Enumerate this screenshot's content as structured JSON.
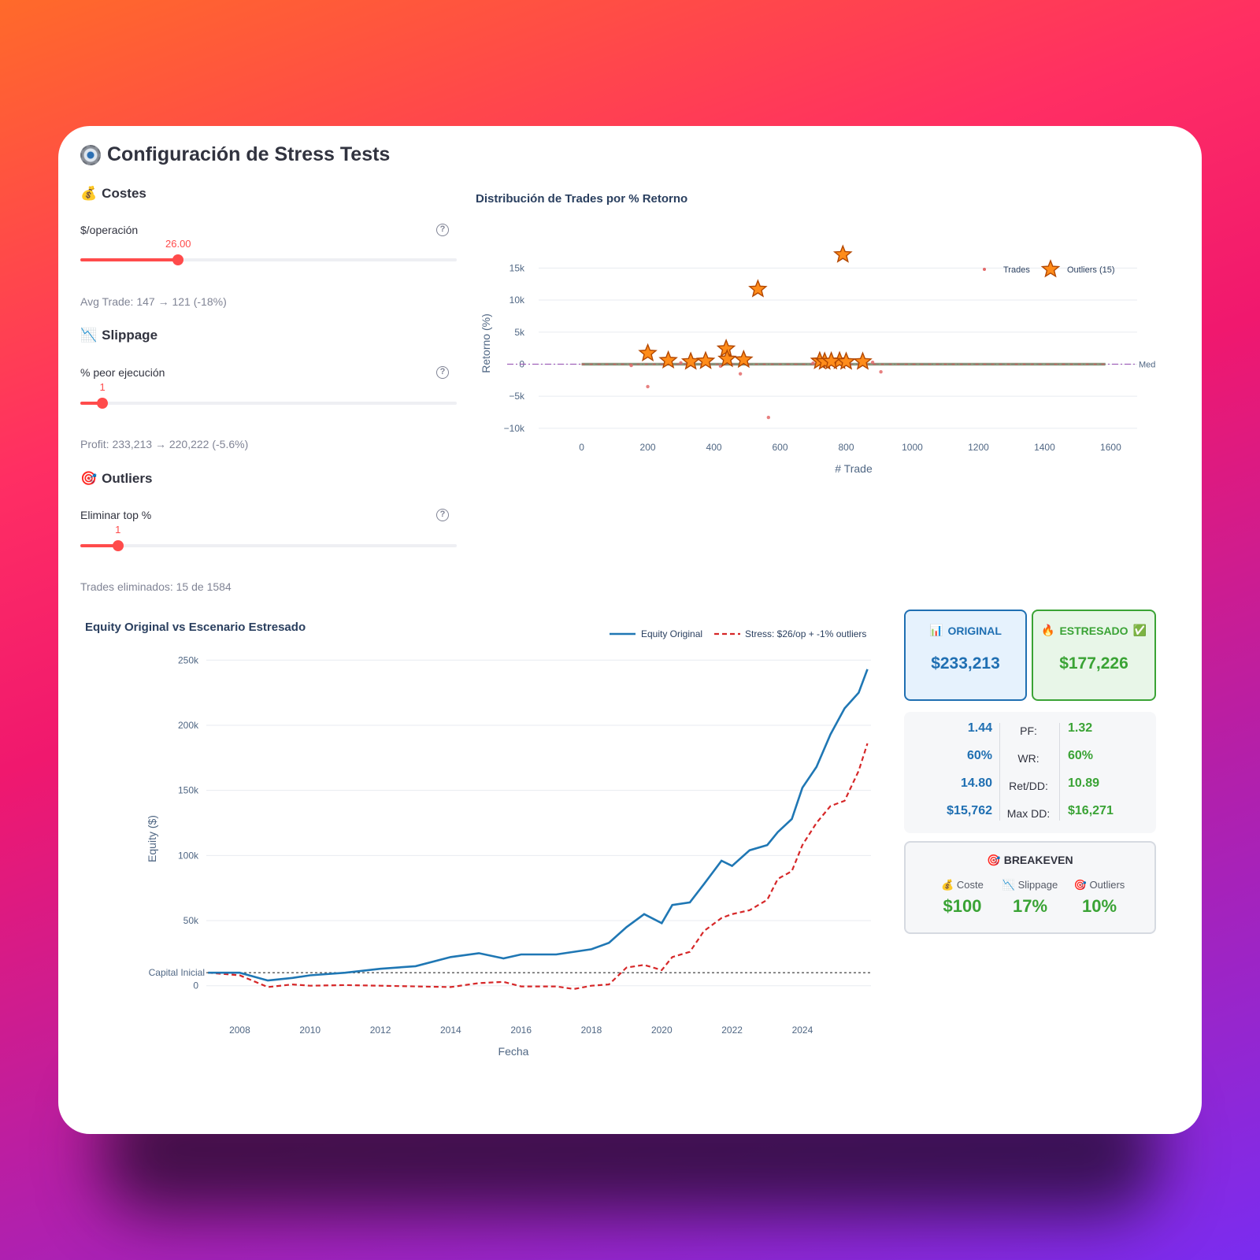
{
  "app_title": "Configuración de Stress Tests",
  "icons": {
    "title": "gear-icon",
    "costes": "money-bag-icon",
    "slippage": "chart-down-icon",
    "outliers": "target-icon",
    "original": "bar-chart-icon",
    "estresado": "fire-icon",
    "estresado_ok": "check-icon",
    "breakeven": "target-icon"
  },
  "costes": {
    "heading": "Costes",
    "label": "$/operación",
    "value_display": "26.00",
    "value": 26.0,
    "max": 100,
    "caption": "Avg Trade: 147 → 121 (-18%)"
  },
  "slippage": {
    "heading": "Slippage",
    "label": "% peor ejecución",
    "value_display": "1",
    "value": 1,
    "max": 17,
    "caption": "Profit: 233,213 → 220,222 (-5.6%)"
  },
  "outliers": {
    "heading": "Outliers",
    "label": "Eliminar top %",
    "value_display": "1",
    "value": 1,
    "max": 10,
    "caption": "Trades eliminados: 15 de 1584"
  },
  "help_glyph": "?",
  "scatter_chart": {
    "title": "Distribución de Trades por % Retorno",
    "xlabel": "# Trade",
    "ylabel": "Retorno (%)",
    "xticks": [
      "0",
      "200",
      "400",
      "600",
      "800",
      "1000",
      "1200",
      "1400",
      "1600"
    ],
    "yticks": [
      "15k",
      "10k",
      "5k",
      "0",
      "−5k",
      "−10k"
    ],
    "median_label": "Med",
    "legend_trades": "Trades",
    "legend_outliers": "Outliers (15)"
  },
  "equity_chart": {
    "title": "Equity Original vs Escenario Estresado",
    "xlabel": "Fecha",
    "ylabel": "Equity ($)",
    "xticks": [
      "2008",
      "2010",
      "2012",
      "2014",
      "2016",
      "2018",
      "2020",
      "2022",
      "2024"
    ],
    "yticks": [
      "250k",
      "200k",
      "150k",
      "100k",
      "50k",
      "0"
    ],
    "capital_label": "Capital Inicial",
    "legend_original": "Equity Original",
    "legend_stress": "Stress: $26/op + -1% outliers"
  },
  "original_box": {
    "label": "ORIGINAL",
    "value": "$233,213"
  },
  "estresado_box": {
    "label": "ESTRESADO",
    "value": "$177,226"
  },
  "stats": [
    {
      "label": "PF:",
      "original": "1.44",
      "stress": "1.32"
    },
    {
      "label": "WR:",
      "original": "60%",
      "stress": "60%"
    },
    {
      "label": "Ret/DD:",
      "original": "14.80",
      "stress": "10.89"
    },
    {
      "label": "Max DD:",
      "original": "$15,762",
      "stress": "$16,271"
    }
  ],
  "breakeven": {
    "title": "BREAKEVEN",
    "items": [
      {
        "label": "Coste",
        "value": "$100"
      },
      {
        "label": "Slippage",
        "value": "17%"
      },
      {
        "label": "Outliers",
        "value": "10%"
      }
    ]
  },
  "colors": {
    "accent": "#ff4b4b",
    "original": "#1f77b4",
    "stress": "#d62728",
    "outlier_fill": "#ff7f0e",
    "good": "#3aa335"
  },
  "chart_data": [
    {
      "type": "scatter",
      "title": "Distribución de Trades por % Retorno",
      "xlabel": "# Trade",
      "ylabel": "Retorno (%)",
      "xlim": [
        -130,
        1680
      ],
      "ylim": [
        -11000,
        17500
      ],
      "series": [
        {
          "name": "Trades",
          "points": [
            [
              200,
              -3500
            ],
            [
              565,
              -8300
            ],
            [
              480,
              -1500
            ],
            [
              905,
              -1200
            ],
            [
              150,
              -200
            ],
            [
              300,
              200
            ],
            [
              420,
              -300
            ],
            [
              700,
              150
            ],
            [
              880,
              300
            ]
          ]
        },
        {
          "name": "Outliers (15)",
          "points": [
            [
              200,
              1700
            ],
            [
              262,
              600
            ],
            [
              330,
              400
            ],
            [
              375,
              500
            ],
            [
              437,
              2400
            ],
            [
              440,
              800
            ],
            [
              490,
              700
            ],
            [
              533,
              11700
            ],
            [
              720,
              500
            ],
            [
              735,
              400
            ],
            [
              780,
              500
            ],
            [
              790,
              17100
            ],
            [
              800,
              400
            ],
            [
              850,
              400
            ],
            [
              755,
              450
            ]
          ]
        }
      ],
      "median": 0,
      "trade_range": [
        0,
        1584
      ]
    },
    {
      "type": "line",
      "title": "Equity Original vs Escenario Estresado",
      "xlabel": "Fecha",
      "ylabel": "Equity ($)",
      "xlim": [
        2007.05,
        2025.95
      ],
      "ylim": [
        -5000,
        255000
      ],
      "capital_inicial": 10000,
      "series": [
        {
          "name": "Equity Original",
          "x": [
            2007.1,
            2008,
            2008.8,
            2009.5,
            2010,
            2011,
            2012,
            2013,
            2014,
            2014.8,
            2015.5,
            2016,
            2017,
            2018,
            2018.5,
            2019,
            2019.5,
            2020,
            2020.3,
            2020.8,
            2021.2,
            2021.7,
            2022,
            2022.5,
            2023,
            2023.3,
            2023.7,
            2024,
            2024.4,
            2024.8,
            2025.2,
            2025.6,
            2025.85
          ],
          "y": [
            10000,
            10000,
            4000,
            6000,
            8000,
            10000,
            13000,
            15000,
            22000,
            25000,
            21000,
            24000,
            24000,
            28000,
            33000,
            45000,
            55000,
            48000,
            62000,
            64000,
            78000,
            96000,
            92000,
            104000,
            108000,
            118000,
            128000,
            152000,
            168000,
            193000,
            213000,
            225000,
            243000
          ]
        },
        {
          "name": "Stress: $26/op + -1% outliers",
          "x": [
            2007.1,
            2008,
            2008.8,
            2009.5,
            2010,
            2011,
            2012,
            2013,
            2014,
            2014.8,
            2015.5,
            2016,
            2017,
            2017.5,
            2018,
            2018.5,
            2019,
            2019.5,
            2020,
            2020.3,
            2020.8,
            2021.2,
            2021.7,
            2022,
            2022.5,
            2023,
            2023.3,
            2023.7,
            2024,
            2024.4,
            2024.8,
            2025.2,
            2025.6,
            2025.85
          ],
          "y": [
            10000,
            8000,
            -1000,
            1000,
            0,
            500,
            0,
            -500,
            -1000,
            2000,
            3000,
            -500,
            -500,
            -2500,
            0,
            1000,
            14000,
            16000,
            12000,
            22000,
            26000,
            42000,
            52000,
            55000,
            58000,
            66000,
            82000,
            88000,
            108000,
            125000,
            138000,
            142000,
            165000,
            186000
          ]
        }
      ]
    }
  ]
}
